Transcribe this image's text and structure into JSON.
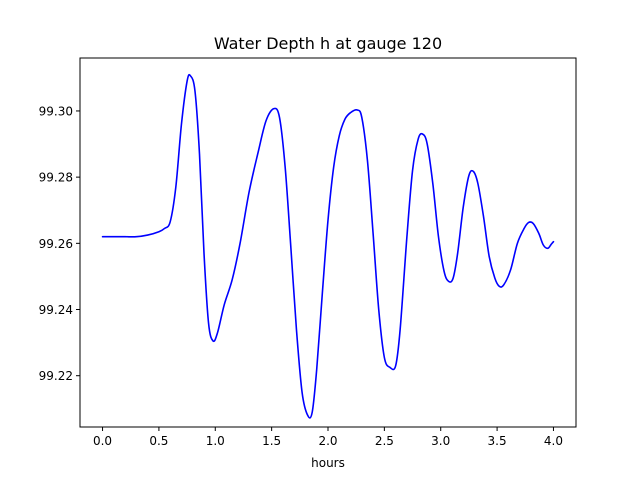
{
  "chart_data": {
    "type": "line",
    "title": "Water Depth h at gauge 120",
    "xlabel": "hours",
    "ylabel": "",
    "xlim": [
      -0.2,
      4.2
    ],
    "ylim": [
      99.2045,
      99.316
    ],
    "x_ticks": [
      0.0,
      0.5,
      1.0,
      1.5,
      2.0,
      2.5,
      3.0,
      3.5,
      4.0
    ],
    "x_tick_labels": [
      "0.0",
      "0.5",
      "1.0",
      "1.5",
      "2.0",
      "2.5",
      "3.0",
      "3.5",
      "4.0"
    ],
    "y_ticks": [
      99.22,
      99.24,
      99.26,
      99.28,
      99.3
    ],
    "y_tick_labels": [
      "99.22",
      "99.24",
      "99.26",
      "99.28",
      "99.30"
    ],
    "grid": false,
    "series": [
      {
        "color": "#0000ff",
        "points": [
          [
            0.0,
            99.262
          ],
          [
            0.1,
            99.262
          ],
          [
            0.2,
            99.262
          ],
          [
            0.3,
            99.262
          ],
          [
            0.4,
            99.2625
          ],
          [
            0.5,
            99.2635
          ],
          [
            0.55,
            99.2645
          ],
          [
            0.6,
            99.2665
          ],
          [
            0.65,
            99.277
          ],
          [
            0.7,
            99.296
          ],
          [
            0.75,
            99.309
          ],
          [
            0.78,
            99.3106
          ],
          [
            0.82,
            99.306
          ],
          [
            0.86,
            99.287
          ],
          [
            0.9,
            99.257
          ],
          [
            0.94,
            99.236
          ],
          [
            0.98,
            99.2305
          ],
          [
            1.02,
            99.233
          ],
          [
            1.08,
            99.2415
          ],
          [
            1.15,
            99.249
          ],
          [
            1.22,
            99.26
          ],
          [
            1.3,
            99.2755
          ],
          [
            1.38,
            99.2875
          ],
          [
            1.45,
            99.297
          ],
          [
            1.52,
            99.3007
          ],
          [
            1.57,
            99.298
          ],
          [
            1.62,
            99.283
          ],
          [
            1.67,
            99.259
          ],
          [
            1.72,
            99.234
          ],
          [
            1.77,
            99.215
          ],
          [
            1.82,
            99.208
          ],
          [
            1.86,
            99.209
          ],
          [
            1.9,
            99.222
          ],
          [
            1.95,
            99.245
          ],
          [
            2.0,
            99.267
          ],
          [
            2.05,
            99.283
          ],
          [
            2.1,
            99.2925
          ],
          [
            2.15,
            99.2975
          ],
          [
            2.2,
            99.2995
          ],
          [
            2.26,
            99.3003
          ],
          [
            2.3,
            99.298
          ],
          [
            2.35,
            99.285
          ],
          [
            2.4,
            99.263
          ],
          [
            2.45,
            99.24
          ],
          [
            2.5,
            99.2255
          ],
          [
            2.55,
            99.2225
          ],
          [
            2.6,
            99.223
          ],
          [
            2.64,
            99.234
          ],
          [
            2.7,
            99.262
          ],
          [
            2.75,
            99.282
          ],
          [
            2.8,
            99.2915
          ],
          [
            2.84,
            99.293
          ],
          [
            2.88,
            99.29
          ],
          [
            2.93,
            99.278
          ],
          [
            2.98,
            99.262
          ],
          [
            3.03,
            99.2515
          ],
          [
            3.07,
            99.2485
          ],
          [
            3.11,
            99.2495
          ],
          [
            3.15,
            99.257
          ],
          [
            3.2,
            99.271
          ],
          [
            3.25,
            99.2805
          ],
          [
            3.29,
            99.2817
          ],
          [
            3.33,
            99.278
          ],
          [
            3.38,
            99.268
          ],
          [
            3.43,
            99.256
          ],
          [
            3.48,
            99.2495
          ],
          [
            3.52,
            99.247
          ],
          [
            3.56,
            99.2475
          ],
          [
            3.62,
            99.252
          ],
          [
            3.68,
            99.26
          ],
          [
            3.74,
            99.2645
          ],
          [
            3.78,
            99.2663
          ],
          [
            3.82,
            99.266
          ],
          [
            3.87,
            99.263
          ],
          [
            3.91,
            99.2595
          ],
          [
            3.95,
            99.2585
          ],
          [
            3.98,
            99.2597
          ],
          [
            4.0,
            99.2605
          ]
        ]
      }
    ]
  }
}
